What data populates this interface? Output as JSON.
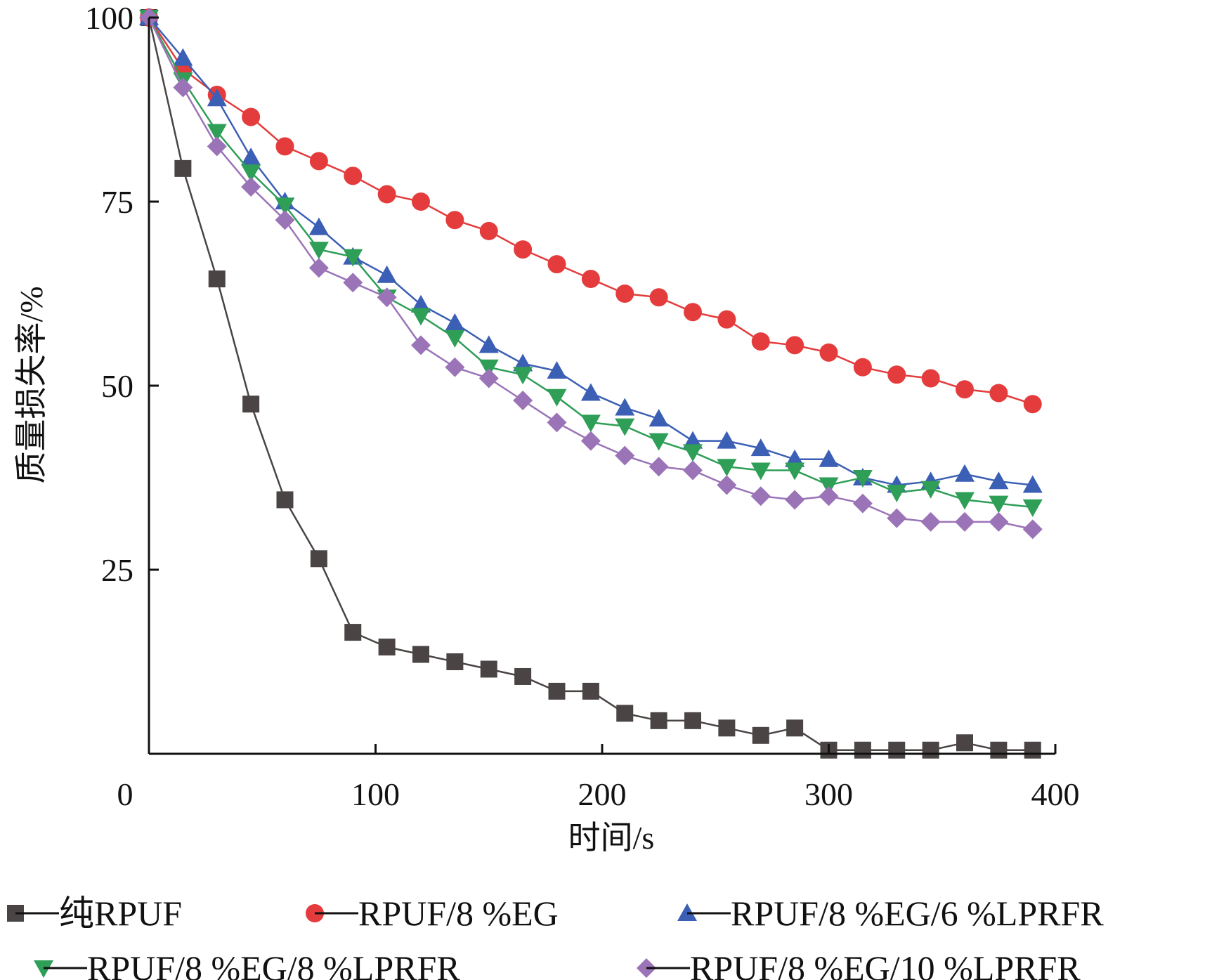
{
  "chart_data": {
    "type": "line",
    "title": "",
    "xlabel": "时间/s",
    "ylabel": "质量损失率/%",
    "xlim": [
      0,
      400
    ],
    "ylim": [
      0,
      100
    ],
    "x_ticks": [
      0,
      100,
      200,
      300,
      400
    ],
    "y_ticks": [
      25,
      50,
      75,
      100
    ],
    "grid": false,
    "legend_position": "bottom",
    "series": [
      {
        "name": "纯RPUF",
        "color": "#4a4444",
        "marker": "square",
        "x": [
          0,
          15,
          30,
          45,
          60,
          75,
          90,
          105,
          120,
          135,
          150,
          165,
          180,
          195,
          210,
          225,
          240,
          255,
          270,
          285,
          300,
          315,
          330,
          345,
          360,
          375,
          390
        ],
        "y": [
          100,
          79.5,
          64.5,
          47.5,
          34.5,
          26.5,
          16.5,
          14.5,
          13.5,
          12.5,
          11.5,
          10.5,
          8.5,
          8.5,
          5.5,
          4.5,
          4.5,
          3.5,
          2.5,
          3.5,
          0.5,
          0.5,
          0.5,
          0.5,
          1.5,
          0.5,
          0.5
        ]
      },
      {
        "name": "RPUF/8 %EG",
        "color": "#e43c3c",
        "marker": "circle",
        "x": [
          0,
          15,
          30,
          45,
          60,
          75,
          90,
          105,
          120,
          135,
          150,
          165,
          180,
          195,
          210,
          225,
          240,
          255,
          270,
          285,
          300,
          315,
          330,
          345,
          360,
          375,
          390
        ],
        "y": [
          100,
          93,
          89.5,
          86.5,
          82.5,
          80.5,
          78.5,
          76,
          75,
          72.5,
          71,
          68.5,
          66.5,
          64.5,
          62.5,
          62,
          60,
          59,
          56,
          55.5,
          54.5,
          52.5,
          51.5,
          51,
          49.5,
          49,
          47.5
        ]
      },
      {
        "name": "RPUF/8 %EG/6 %LPRFR",
        "color": "#3b5fb4",
        "marker": "triangle-up",
        "x": [
          0,
          15,
          30,
          45,
          60,
          75,
          90,
          105,
          120,
          135,
          150,
          165,
          180,
          195,
          210,
          225,
          240,
          255,
          270,
          285,
          300,
          315,
          330,
          345,
          360,
          375,
          390
        ],
        "y": [
          100,
          94.5,
          89,
          81,
          75,
          71.5,
          67.5,
          65,
          61,
          58.5,
          55.5,
          53,
          52,
          49,
          47,
          45.5,
          42.5,
          42.5,
          41.5,
          40,
          40,
          37.5,
          36.5,
          37,
          38,
          37,
          36.5
        ]
      },
      {
        "name": "RPUF/8 %EG/8 %LPRFR",
        "color": "#2f9e57",
        "marker": "triangle-down",
        "x": [
          0,
          15,
          30,
          45,
          60,
          75,
          90,
          105,
          120,
          135,
          150,
          165,
          180,
          195,
          210,
          225,
          240,
          255,
          270,
          285,
          300,
          315,
          330,
          345,
          360,
          375,
          390
        ],
        "y": [
          100,
          91.5,
          84.5,
          79,
          74.5,
          68.5,
          67.5,
          62,
          59.5,
          56.5,
          52.5,
          51.5,
          48.5,
          45,
          44.5,
          42.5,
          41,
          39,
          38.5,
          38.5,
          36.5,
          37.5,
          35.5,
          36,
          34.5,
          34,
          33.5
        ]
      },
      {
        "name": "RPUF/8 %EG/10 %LPRFR",
        "color": "#9b74b8",
        "marker": "diamond",
        "x": [
          0,
          15,
          30,
          45,
          60,
          75,
          90,
          105,
          120,
          135,
          150,
          165,
          180,
          195,
          210,
          225,
          240,
          255,
          270,
          285,
          300,
          315,
          330,
          345,
          360,
          375,
          390
        ],
        "y": [
          100,
          90.5,
          82.5,
          77,
          72.5,
          66,
          64,
          62,
          55.5,
          52.5,
          51,
          48,
          45,
          42.5,
          40.5,
          39,
          38.5,
          36.5,
          35,
          34.5,
          35,
          34,
          32,
          31.5,
          31.5,
          31.5,
          30.5
        ]
      }
    ]
  }
}
